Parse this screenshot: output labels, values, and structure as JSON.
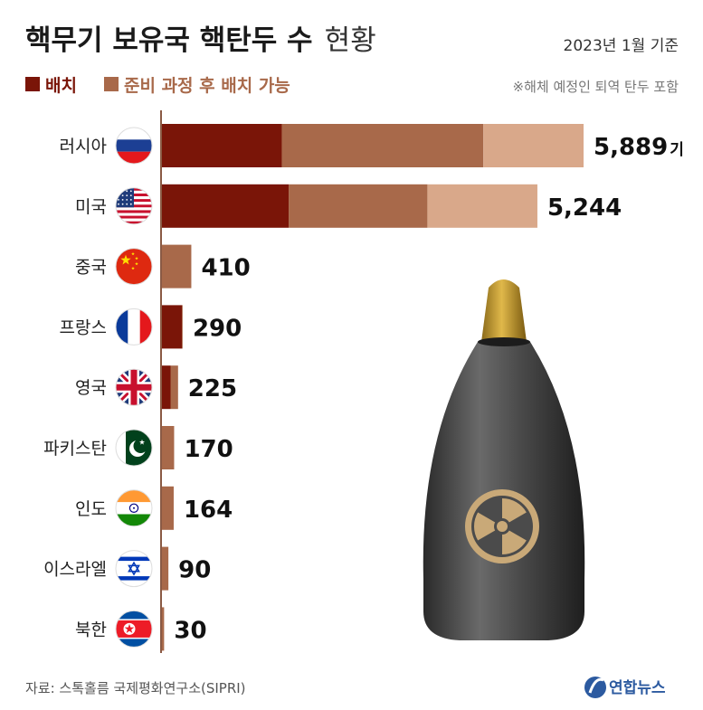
{
  "chart_data": {
    "type": "bar",
    "orientation": "horizontal",
    "stacked": true,
    "title": "핵무기 보유국 핵탄두 수",
    "title_suffix": "현황",
    "as_of": "2023년 1월 기준",
    "note": "※해체 예정인 퇴역 탄두 포함",
    "source": "자료: 스톡홀름 국제평화연구소(SIPRI)",
    "unit": "기",
    "categories": [
      "러시아",
      "미국",
      "중국",
      "프랑스",
      "영국",
      "파키스탄",
      "인도",
      "이스라엘",
      "북한"
    ],
    "totals": [
      5889,
      5244,
      410,
      290,
      225,
      170,
      164,
      90,
      30
    ],
    "total_labels": [
      "5,889",
      "5,244",
      "410",
      "290",
      "225",
      "170",
      "164",
      "90",
      "30"
    ],
    "series": [
      {
        "name": "배치",
        "color": "#7a1508",
        "values": [
          1674,
          1770,
          0,
          280,
          120,
          0,
          0,
          0,
          0
        ]
      },
      {
        "name": "준비 과정 후 배치 가능",
        "color": "#a8694a",
        "values": [
          2815,
          1938,
          410,
          10,
          105,
          170,
          164,
          90,
          30
        ]
      },
      {
        "color": "#d9a88a",
        "values": [
          1400,
          1536,
          0,
          0,
          0,
          0,
          0,
          0,
          0
        ]
      }
    ],
    "legend": [
      {
        "label": "배치",
        "color": "#7a1508"
      },
      {
        "label": "준비 과정 후 배치 가능",
        "color": "#a8694a"
      }
    ],
    "legend_position": "top-left",
    "grid": false
  },
  "flags": [
    "russia-flag-icon",
    "usa-flag-icon",
    "china-flag-icon",
    "france-flag-icon",
    "uk-flag-icon",
    "pakistan-flag-icon",
    "india-flag-icon",
    "israel-flag-icon",
    "north-korea-flag-icon"
  ],
  "illustration": {
    "icon": "nuclear-warhead-icon",
    "symbol": "radiation-icon"
  },
  "logo": {
    "text": "연합뉴스",
    "icon": "yonhap-logo-icon"
  }
}
